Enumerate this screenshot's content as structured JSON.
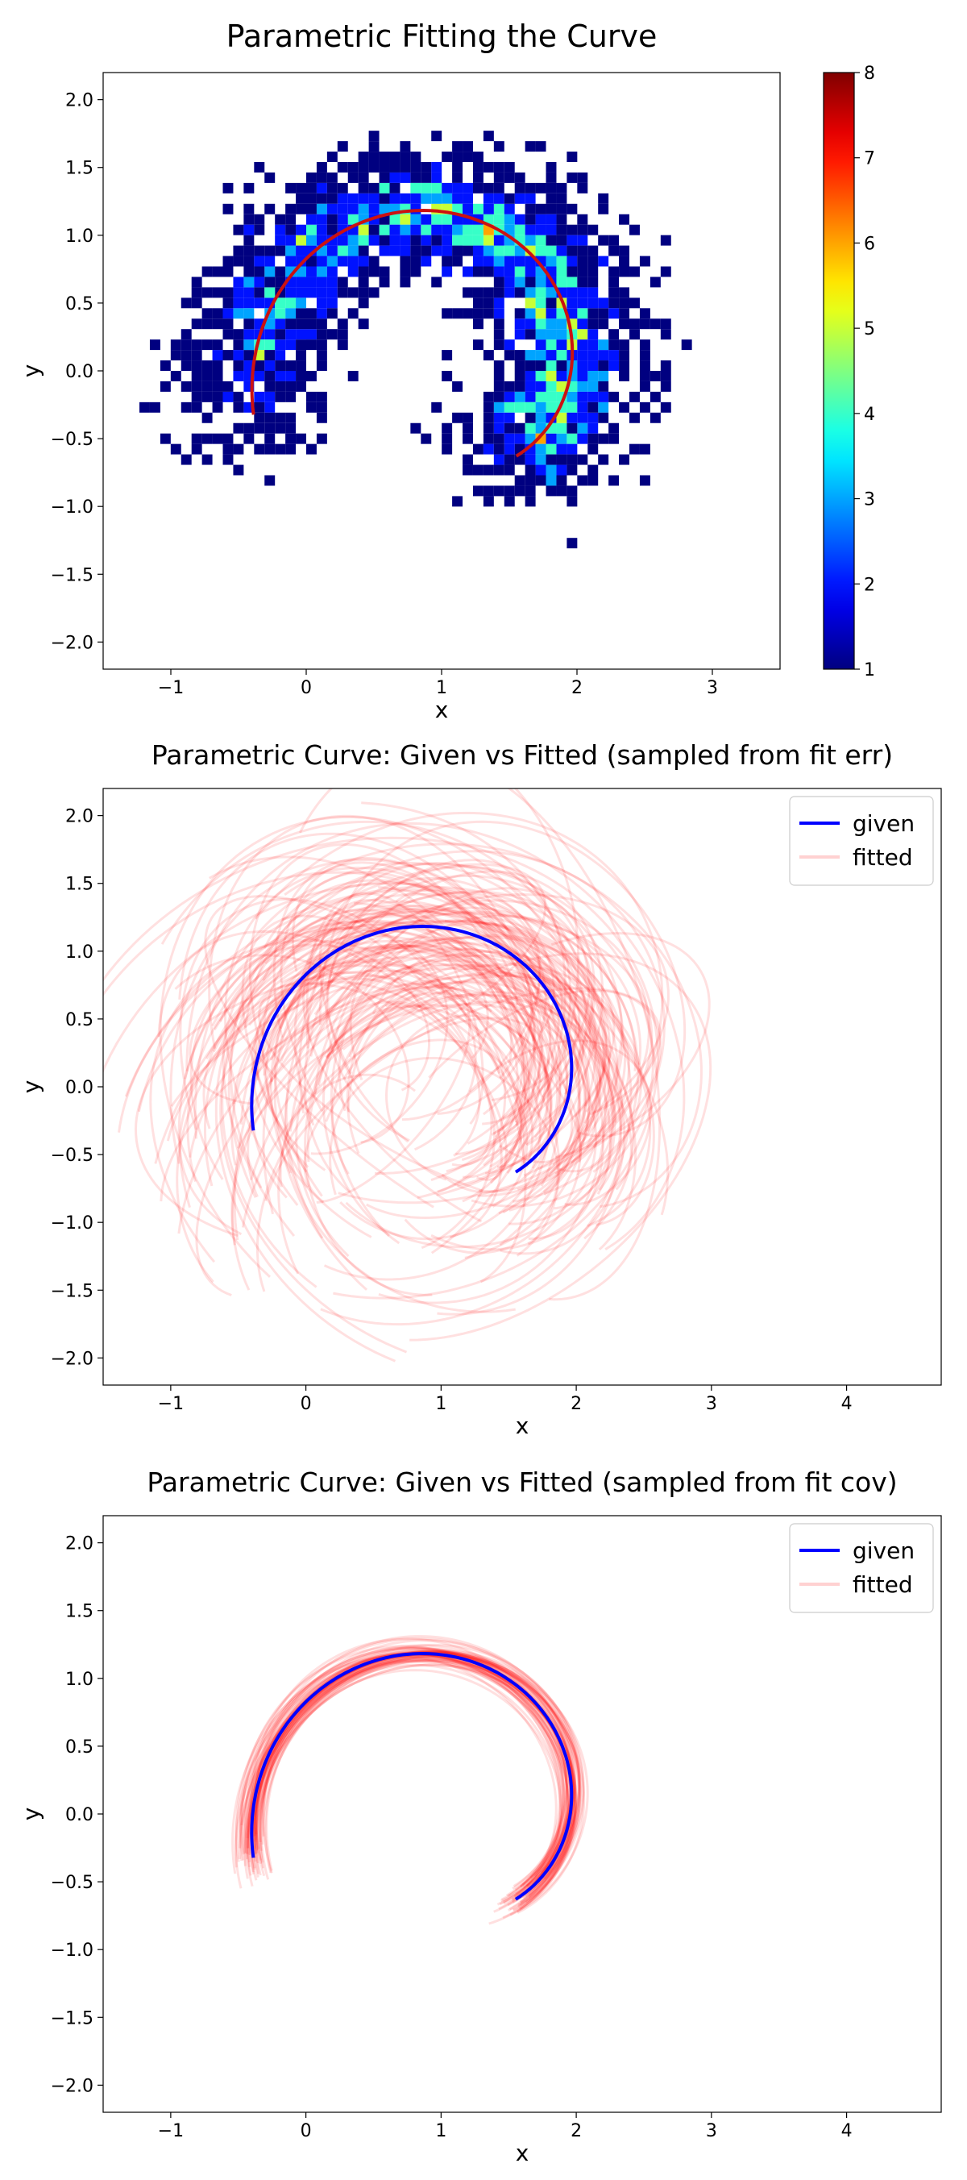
{
  "chart_data": [
    {
      "type": "heatmap",
      "title": "Parametric Fitting the Curve",
      "xlabel": "x",
      "ylabel": "y",
      "xlim": [
        -1.5,
        3.5
      ],
      "ylim": [
        -2.2,
        2.2
      ],
      "xticks": [
        -1,
        0,
        1,
        2,
        3
      ],
      "yticks": [
        -2.0,
        -1.5,
        -1.0,
        -0.5,
        0.0,
        0.5,
        1.0,
        1.5,
        2.0
      ],
      "colormap": "jet",
      "colorbar": {
        "min": 1,
        "max": 8,
        "ticks": [
          1,
          2,
          3,
          4,
          5,
          6,
          7,
          8
        ]
      },
      "curve": {
        "color": "#cc1111",
        "t_range": [
          0,
          1
        ]
      },
      "bins": {
        "size": 0.077,
        "count_max": 8
      }
    },
    {
      "type": "line",
      "title": "Parametric Curve: Given vs Fitted (sampled from fit err)",
      "xlabel": "x",
      "ylabel": "y",
      "xlim": [
        -1.5,
        4.7
      ],
      "ylim": [
        -2.2,
        2.2
      ],
      "xticks": [
        -1,
        0,
        1,
        2,
        3,
        4
      ],
      "yticks": [
        -2.0,
        -1.5,
        -1.0,
        -0.5,
        0.0,
        0.5,
        1.0,
        1.5,
        2.0
      ],
      "legend": {
        "placement": "top-right",
        "entries": [
          "given",
          "fitted"
        ]
      },
      "series": [
        {
          "name": "given",
          "color": "#0000ff"
        },
        {
          "name": "fitted",
          "color": "#ff0000",
          "alpha": 0.12,
          "samples": 150,
          "spread": "large"
        }
      ]
    },
    {
      "type": "line",
      "title": "Parametric Curve: Given vs Fitted (sampled from fit cov)",
      "xlabel": "x",
      "ylabel": "y",
      "xlim": [
        -1.5,
        4.7
      ],
      "ylim": [
        -2.2,
        2.2
      ],
      "xticks": [
        -1,
        0,
        1,
        2,
        3,
        4
      ],
      "yticks": [
        -2.0,
        -1.5,
        -1.0,
        -0.5,
        0.0,
        0.5,
        1.0,
        1.5,
        2.0
      ],
      "legend": {
        "placement": "top-right",
        "entries": [
          "given",
          "fitted"
        ]
      },
      "series": [
        {
          "name": "given",
          "color": "#0000ff"
        },
        {
          "name": "fitted",
          "color": "#ff0000",
          "alpha": 0.12,
          "samples": 60,
          "spread": "small"
        }
      ]
    }
  ]
}
